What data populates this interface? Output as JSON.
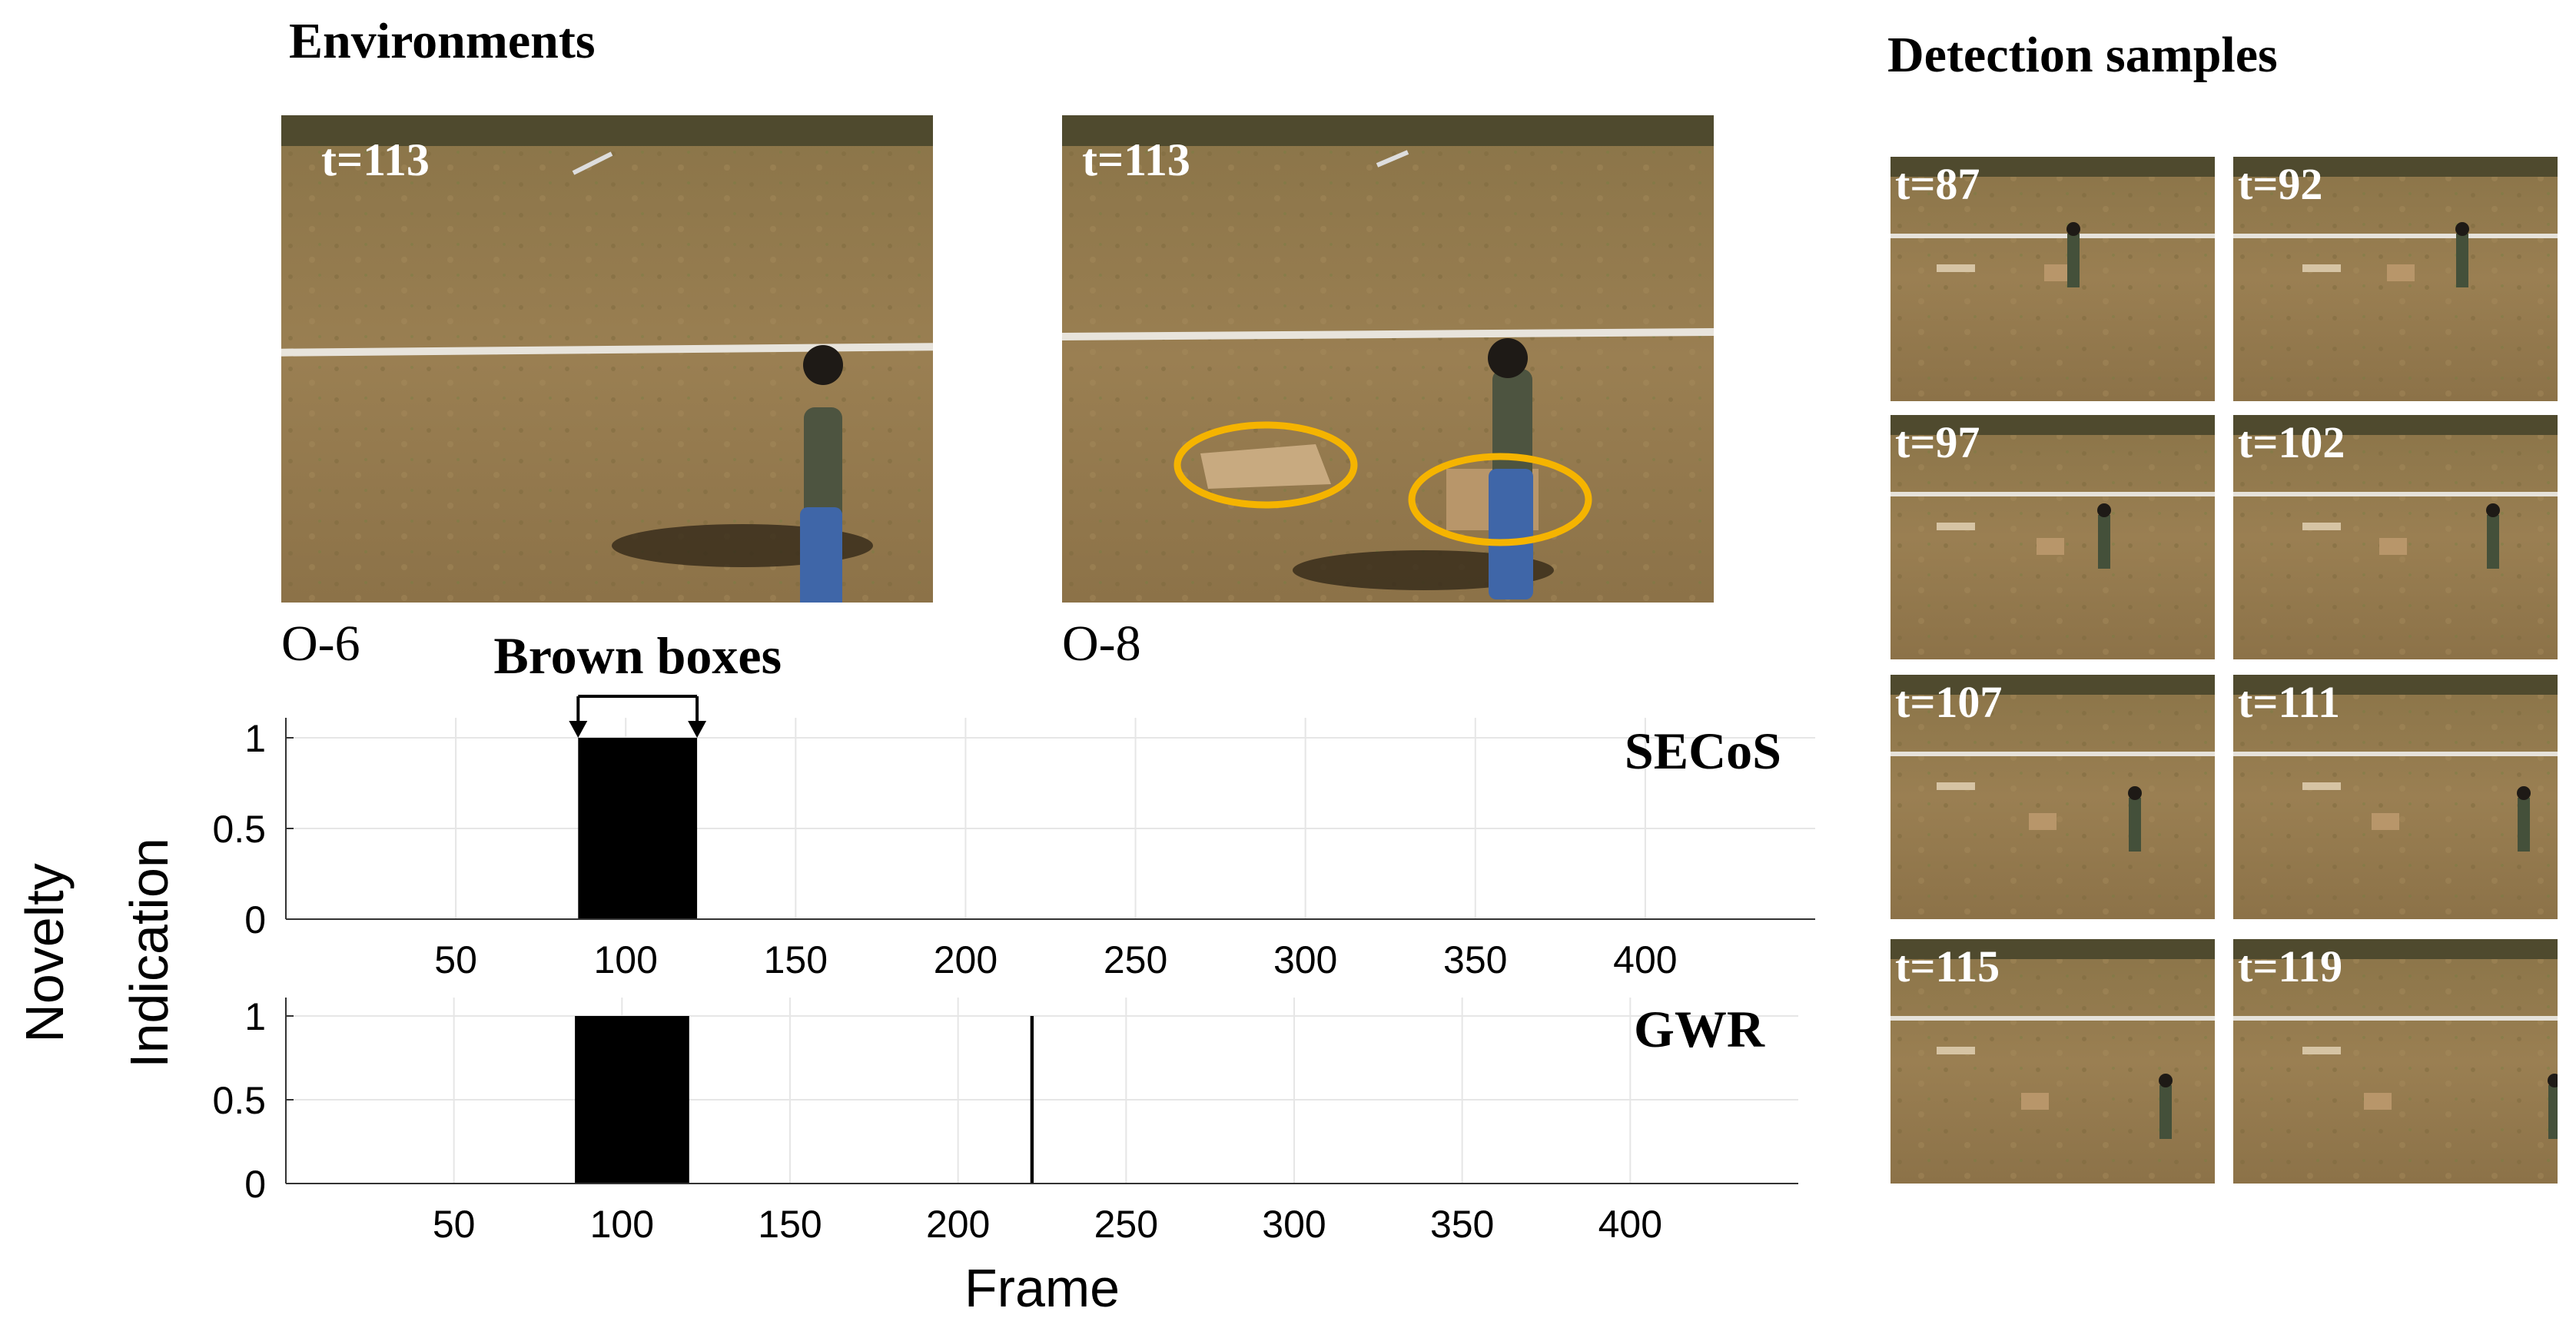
{
  "environments": {
    "heading": "Environments",
    "panels": [
      {
        "caption": "O-6",
        "time_label": "t=113"
      },
      {
        "caption": "O-8",
        "time_label": "t=113"
      }
    ]
  },
  "detection_samples": {
    "heading": "Detection samples",
    "time_labels": [
      "t=87",
      "t=92",
      "t=97",
      "t=102",
      "t=107",
      "t=111",
      "t=115",
      "t=119"
    ]
  },
  "annotation": {
    "label": "Brown boxes"
  },
  "colors": {
    "highlight_ring": "#f5b400",
    "bar": "#000000",
    "grid": "#e6e6e6"
  },
  "chart_data": [
    {
      "type": "bar",
      "title": "SECoS",
      "ylabel": "Novelty Indication",
      "xlabel": "",
      "xlim": [
        0,
        450
      ],
      "ylim": [
        0,
        1
      ],
      "xticks": [
        50,
        100,
        150,
        200,
        250,
        300,
        350,
        400
      ],
      "yticks": [
        0,
        0.5,
        1
      ],
      "ytick_labels": [
        "0",
        "0.5",
        "1"
      ],
      "segments": [
        {
          "start": 86,
          "end": 121,
          "value": 1
        }
      ],
      "grid": true
    },
    {
      "type": "bar",
      "title": "GWR",
      "ylabel": "Novelty Indication",
      "xlabel": "Frame",
      "xlim": [
        0,
        450
      ],
      "ylim": [
        0,
        1
      ],
      "xticks": [
        50,
        100,
        150,
        200,
        250,
        300,
        350,
        400
      ],
      "yticks": [
        0,
        0.5,
        1
      ],
      "ytick_labels": [
        "0",
        "0.5",
        "1"
      ],
      "segments": [
        {
          "start": 86,
          "end": 120,
          "value": 1
        },
        {
          "start": 221.5,
          "end": 222.5,
          "value": 1
        }
      ],
      "grid": true
    }
  ]
}
